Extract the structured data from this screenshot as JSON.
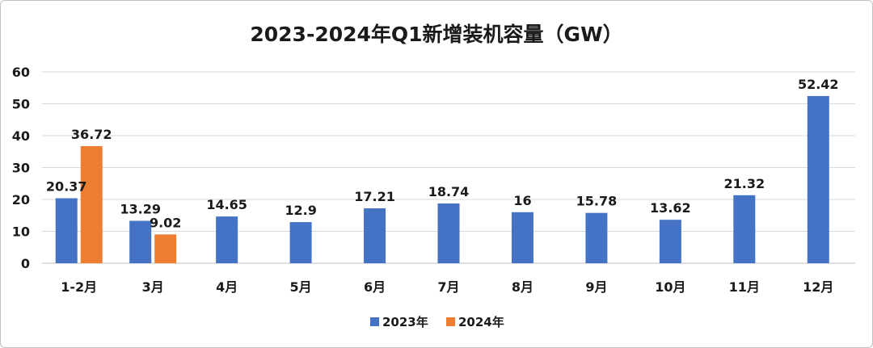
{
  "chart_data": {
    "type": "bar",
    "title": "2023-2024年Q1新增装机容量（GW）",
    "xlabel": "",
    "ylabel": "",
    "ylim": [
      0,
      60
    ],
    "yticks": [
      0,
      10,
      20,
      30,
      40,
      50,
      60
    ],
    "grid": true,
    "legend_position": "bottom",
    "categories": [
      "1-2月",
      "3月",
      "4月",
      "5月",
      "6月",
      "7月",
      "8月",
      "9月",
      "10月",
      "11月",
      "12月"
    ],
    "series": [
      {
        "name": "2023年",
        "color": "#4472c4",
        "values": [
          20.37,
          13.29,
          14.65,
          12.9,
          17.21,
          18.74,
          16,
          15.78,
          13.62,
          21.32,
          52.42
        ],
        "labels": [
          "20.37",
          "13.29",
          "14.65",
          "12.9",
          "17.21",
          "18.74",
          "16",
          "15.78",
          "13.62",
          "21.32",
          "52.42"
        ]
      },
      {
        "name": "2024年",
        "color": "#ed7d31",
        "values": [
          36.72,
          9.02,
          null,
          null,
          null,
          null,
          null,
          null,
          null,
          null,
          null
        ],
        "labels": [
          "36.72",
          "9.02",
          null,
          null,
          null,
          null,
          null,
          null,
          null,
          null,
          null
        ]
      }
    ]
  }
}
